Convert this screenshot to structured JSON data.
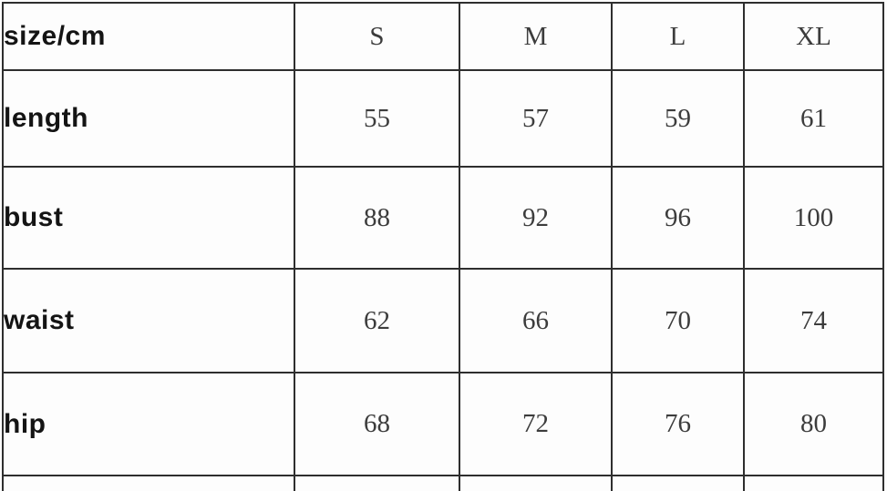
{
  "chart_data": {
    "type": "table",
    "title": "size/cm",
    "corner_label": "size/cm",
    "columns": [
      "S",
      "M",
      "L",
      "XL"
    ],
    "rows": [
      {
        "label": "length",
        "values": [
          "55",
          "57",
          "59",
          "61"
        ]
      },
      {
        "label": "bust",
        "values": [
          "88",
          "92",
          "96",
          "100"
        ]
      },
      {
        "label": "waist",
        "values": [
          "62",
          "66",
          "70",
          "74"
        ]
      },
      {
        "label": "hip",
        "values": [
          "68",
          "72",
          "76",
          "80"
        ]
      }
    ]
  },
  "colors": {
    "background": "#fdfdfd",
    "border": "#2e2e2e",
    "label_text": "#141414",
    "value_text": "#3c3c3c"
  }
}
